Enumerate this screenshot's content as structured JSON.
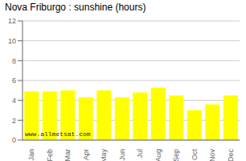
{
  "chart_data": {
    "type": "bar",
    "title": "Nova Friburgo : sunshine (hours)",
    "categories": [
      "Jan",
      "Feb",
      "Mar",
      "Apr",
      "May",
      "Jun",
      "Jul",
      "Aug",
      "Sep",
      "Oct",
      "Nov",
      "Dec"
    ],
    "values": [
      4.9,
      4.9,
      5.0,
      4.3,
      5.0,
      4.3,
      4.8,
      5.3,
      4.5,
      3.0,
      3.6,
      4.5
    ],
    "color": "#ffff00",
    "ylim": [
      0,
      12
    ],
    "yticks": [
      0,
      2,
      4,
      6,
      8,
      10,
      12
    ],
    "grid": true,
    "annotations": [
      "www.allmetsat.com"
    ]
  }
}
